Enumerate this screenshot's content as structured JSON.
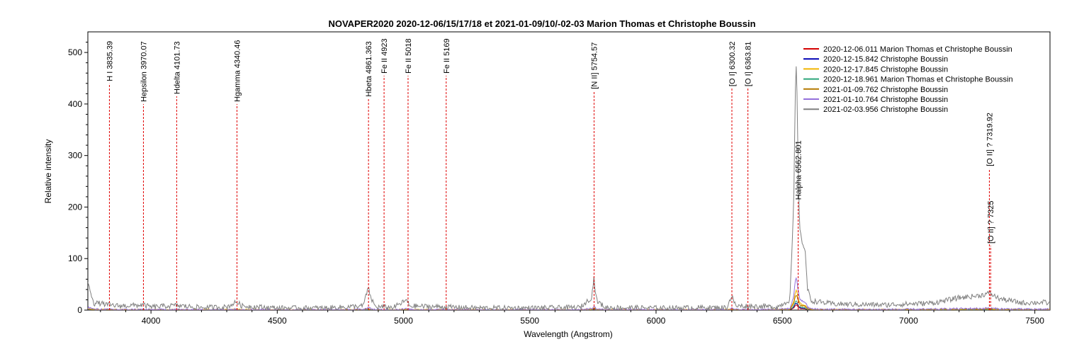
{
  "chart_data": {
    "type": "line",
    "title": "NOVAPER2020   2020-12-06/15/17/18 et 2021-01-09/10/-02-03 Marion Thomas et Christophe Boussin",
    "xlabel": "Wavelength (Angstrom)",
    "ylabel": "Relative intensity",
    "xlim": [
      3750,
      7560
    ],
    "ylim": [
      0,
      540
    ],
    "xticks": [
      4000,
      4500,
      5000,
      5500,
      6000,
      6500,
      7000,
      7500
    ],
    "yticks": [
      0,
      100,
      200,
      300,
      400,
      500
    ],
    "grid": false,
    "legend_position": "top-right",
    "series": [
      {
        "name": "2020-12-06.011  Marion Thomas et Christophe Boussin",
        "color": "#d40000",
        "peak": 10,
        "line_scale": 0.018,
        "noise": 0.6
      },
      {
        "name": "2020-12-15.842  Christophe Boussin",
        "color": "#0000b4",
        "peak": 14,
        "line_scale": 0.022,
        "noise": 0.6
      },
      {
        "name": "2020-12-17.845  Christophe Boussin",
        "color": "#f0b400",
        "peak": 40,
        "line_scale": 0.06,
        "noise": 1.5
      },
      {
        "name": "2020-12-18.961  Marion Thomas et Christophe Boussin",
        "color": "#2ca57a",
        "peak": 18,
        "line_scale": 0.03,
        "noise": 0.8
      },
      {
        "name": "2021-01-09.762  Christophe Boussin",
        "color": "#b47800",
        "peak": 30,
        "line_scale": 0.05,
        "noise": 1.2
      },
      {
        "name": "2021-01-10.764  Christophe Boussin",
        "color": "#9370db",
        "peak": 65,
        "line_scale": 0.11,
        "noise": 2.0
      },
      {
        "name": "2021-02-03.956  Christophe Boussin",
        "color": "#808080",
        "peak": 485,
        "line_scale": 1.0,
        "noise": 5.0
      }
    ],
    "emission_profile": [
      [
        3750,
        50
      ],
      [
        3760,
        38
      ],
      [
        3775,
        12
      ],
      [
        3790,
        14
      ],
      [
        3830,
        10
      ],
      [
        3880,
        8
      ],
      [
        3970,
        10
      ],
      [
        4000,
        6
      ],
      [
        4100,
        9
      ],
      [
        4200,
        5
      ],
      [
        4300,
        6
      ],
      [
        4340,
        16
      ],
      [
        4360,
        8
      ],
      [
        4500,
        4
      ],
      [
        4700,
        4
      ],
      [
        4840,
        8
      ],
      [
        4852,
        30
      ],
      [
        4861,
        42
      ],
      [
        4872,
        22
      ],
      [
        4890,
        6
      ],
      [
        4923,
        6
      ],
      [
        4960,
        5
      ],
      [
        5000,
        16
      ],
      [
        5010,
        20
      ],
      [
        5025,
        8
      ],
      [
        5169,
        6
      ],
      [
        5300,
        4
      ],
      [
        5500,
        4
      ],
      [
        5700,
        5
      ],
      [
        5745,
        25
      ],
      [
        5754,
        62
      ],
      [
        5765,
        18
      ],
      [
        5800,
        5
      ],
      [
        6000,
        4
      ],
      [
        6280,
        5
      ],
      [
        6300,
        28
      ],
      [
        6315,
        8
      ],
      [
        6363,
        8
      ],
      [
        6480,
        6
      ],
      [
        6530,
        20
      ],
      [
        6545,
        200
      ],
      [
        6552,
        430
      ],
      [
        6556,
        485
      ],
      [
        6562,
        300
      ],
      [
        6568,
        170
      ],
      [
        6575,
        135
      ],
      [
        6590,
        120
      ],
      [
        6600,
        40
      ],
      [
        6615,
        18
      ],
      [
        6700,
        12
      ],
      [
        6900,
        10
      ],
      [
        7100,
        14
      ],
      [
        7200,
        24
      ],
      [
        7280,
        28
      ],
      [
        7320,
        33
      ],
      [
        7360,
        22
      ],
      [
        7450,
        14
      ],
      [
        7540,
        15
      ],
      [
        7560,
        12
      ]
    ],
    "line_ids": [
      {
        "label": "H I 3835.39",
        "x": 3835.39,
        "y_top": 440
      },
      {
        "label": "Hepsilon 3970.07",
        "x": 3970.07,
        "y_top": 400
      },
      {
        "label": "Hdelta 4101.73",
        "x": 4101.73,
        "y_top": 415
      },
      {
        "label": "Hgamma 4340.46",
        "x": 4340.46,
        "y_top": 400
      },
      {
        "label": "Hbeta 4861.363",
        "x": 4861.363,
        "y_top": 410
      },
      {
        "label": "Fe II 4923",
        "x": 4923,
        "y_top": 455
      },
      {
        "label": "Fe II 5018",
        "x": 5018,
        "y_top": 455
      },
      {
        "label": "Fe II 5169",
        "x": 5169,
        "y_top": 455
      },
      {
        "label": "[N II] 5754.57",
        "x": 5754.57,
        "y_top": 425
      },
      {
        "label": "[O I] 6300.32",
        "x": 6300.32,
        "y_top": 430
      },
      {
        "label": "[O I] 6363.81",
        "x": 6363.81,
        "y_top": 430
      },
      {
        "label": "Halpha 6562.801",
        "x": 6562.801,
        "y_top": 210
      },
      {
        "label": "[O II] ? 7319.92",
        "x": 7319.92,
        "y_top": 275
      },
      {
        "label": "[O II] ? 7325",
        "x": 7325,
        "y_top": 125
      }
    ]
  }
}
